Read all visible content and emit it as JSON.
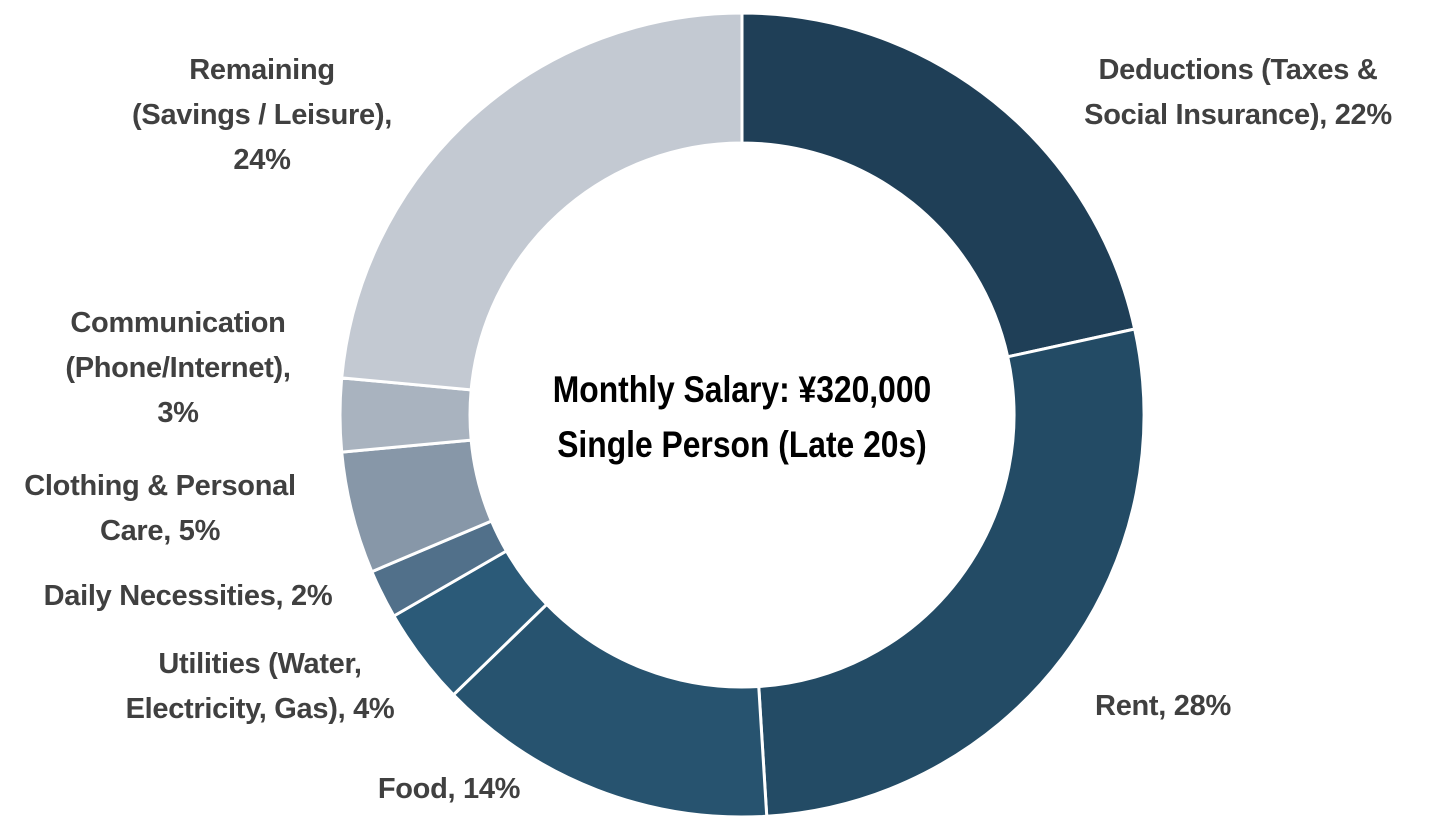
{
  "chart_data": {
    "type": "pie",
    "variant": "donut",
    "center_text": [
      "Monthly Salary: ¥320,000",
      "Single Person (Late 20s)"
    ],
    "slices": [
      {
        "name": "Deductions (Taxes & Social Insurance)",
        "value": 22,
        "label_lines": [
          "Deductions (Taxes &",
          "Social Insurance), 22%"
        ],
        "color": "#1f3f57"
      },
      {
        "name": "Rent",
        "value": 28,
        "label_lines": [
          "Rent, 28%"
        ],
        "color": "#234b65"
      },
      {
        "name": "Food",
        "value": 14,
        "label_lines": [
          "Food, 14%"
        ],
        "color": "#27536f"
      },
      {
        "name": "Utilities (Water, Electricity, Gas)",
        "value": 4,
        "label_lines": [
          "Utilities (Water,",
          "Electricity, Gas), 4%"
        ],
        "color": "#2b5a78"
      },
      {
        "name": "Daily Necessities",
        "value": 2,
        "label_lines": [
          "Daily Necessities, 2%"
        ],
        "color": "#51708a"
      },
      {
        "name": "Clothing & Personal Care",
        "value": 5,
        "label_lines": [
          "Clothing & Personal",
          "Care, 5%"
        ],
        "color": "#8797a8"
      },
      {
        "name": "Communication (Phone/Internet)",
        "value": 3,
        "label_lines": [
          "Communication",
          "(Phone/Internet),",
          "3%"
        ],
        "color": "#a9b3bf"
      },
      {
        "name": "Remaining (Savings / Leisure)",
        "value": 24,
        "label_lines": [
          "Remaining",
          "(Savings / Leisure),",
          "24%"
        ],
        "color": "#c3c9d2"
      }
    ],
    "legend": "none",
    "start_angle": "top, clockwise"
  }
}
